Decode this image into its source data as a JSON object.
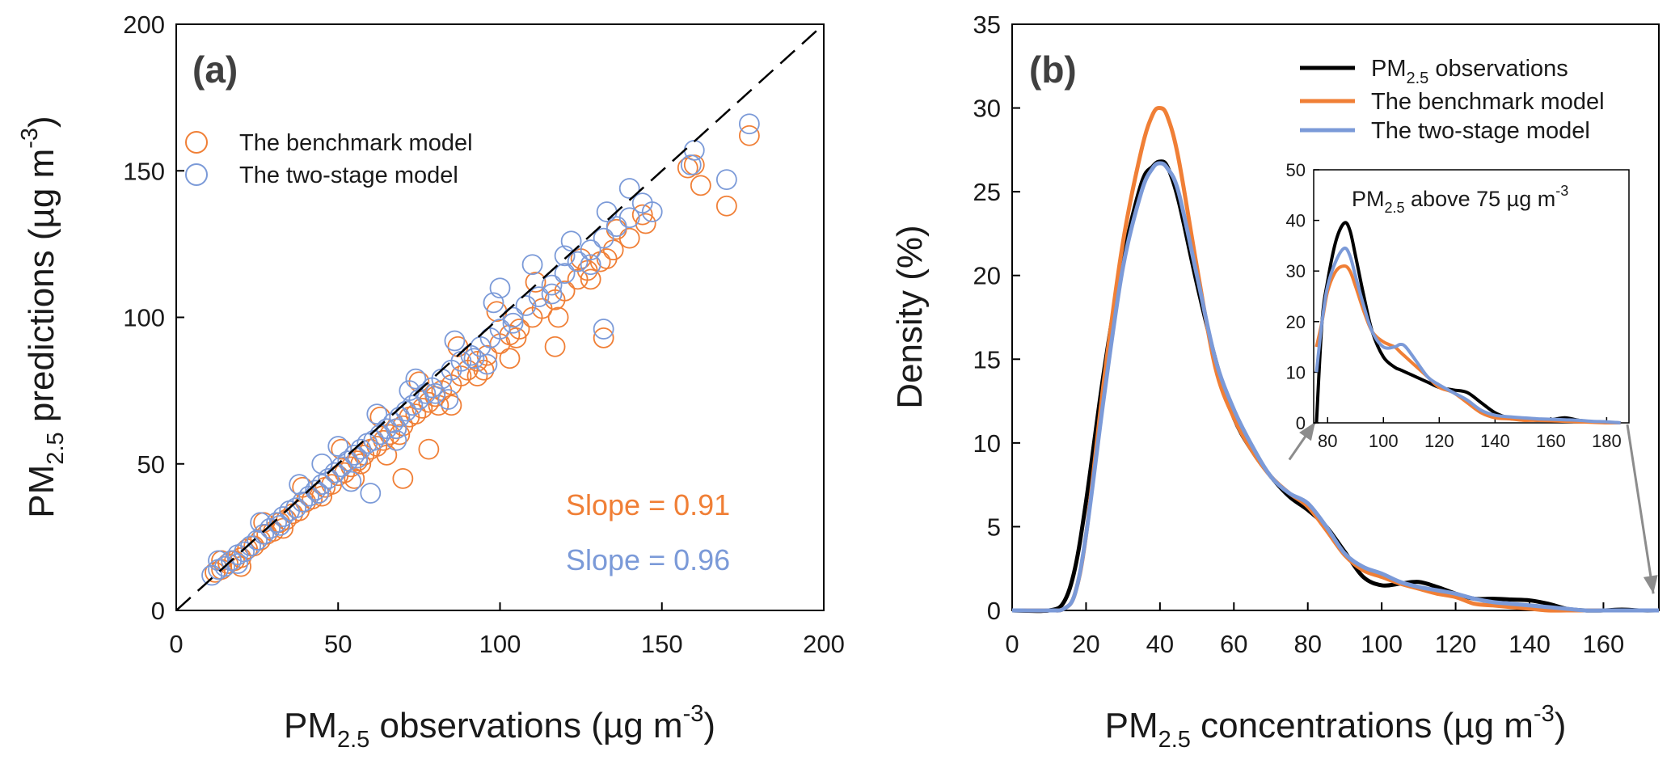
{
  "colors": {
    "benchmark": "#f07f36",
    "twostage": "#7b9ad8",
    "observations": "#000000",
    "arrow": "#8c8c8c"
  },
  "chart_data": [
    {
      "type": "scatter",
      "panel_label": "(a)",
      "xlabel": {
        "pre": "PM",
        "sub": "2.5",
        "mid": " observations (µg m",
        "sup": "-3",
        "post": ")"
      },
      "ylabel": {
        "pre": "PM",
        "sub": "2.5",
        "mid": " predictions (µg m",
        "sup": "-3",
        "post": ")"
      },
      "xlim": [
        0,
        200
      ],
      "ylim": [
        0,
        200
      ],
      "xticks": [
        "0",
        "50",
        "100",
        "150",
        "200"
      ],
      "yticks": [
        "0",
        "50",
        "100",
        "150",
        "200"
      ],
      "reference_line": "1:1 dashed",
      "legend": [
        {
          "label": "The benchmark model",
          "color": "#f07f36"
        },
        {
          "label": "The two-stage model",
          "color": "#7b9ad8"
        }
      ],
      "annotations": [
        {
          "text": "Slope = 0.91",
          "color": "#f07f36"
        },
        {
          "text": "Slope = 0.96",
          "color": "#7b9ad8"
        }
      ],
      "series": [
        {
          "name": "The benchmark model",
          "slope": 0.91,
          "points": [
            [
              12,
              13
            ],
            [
              14,
              14
            ],
            [
              16,
              16
            ],
            [
              18,
              17
            ],
            [
              20,
              18
            ],
            [
              22,
              21
            ],
            [
              24,
              22
            ],
            [
              26,
              24
            ],
            [
              28,
              26
            ],
            [
              30,
              27
            ],
            [
              32,
              30
            ],
            [
              34,
              31
            ],
            [
              36,
              33
            ],
            [
              38,
              34
            ],
            [
              40,
              37
            ],
            [
              42,
              38
            ],
            [
              44,
              40
            ],
            [
              46,
              42
            ],
            [
              48,
              43
            ],
            [
              50,
              46
            ],
            [
              52,
              47
            ],
            [
              54,
              49
            ],
            [
              56,
              51
            ],
            [
              58,
              53
            ],
            [
              60,
              55
            ],
            [
              62,
              56
            ],
            [
              64,
              58
            ],
            [
              66,
              60
            ],
            [
              68,
              62
            ],
            [
              70,
              63
            ],
            [
              72,
              66
            ],
            [
              74,
              67
            ],
            [
              76,
              69
            ],
            [
              78,
              71
            ],
            [
              80,
              73
            ],
            [
              82,
              75
            ],
            [
              85,
              77
            ],
            [
              88,
              80
            ],
            [
              90,
              82
            ],
            [
              93,
              85
            ],
            [
              96,
              87
            ],
            [
              100,
              91
            ],
            [
              103,
              94
            ],
            [
              106,
              96
            ],
            [
              110,
              100
            ],
            [
              113,
              103
            ],
            [
              117,
              106
            ],
            [
              120,
              109
            ],
            [
              124,
              113
            ],
            [
              127,
              116
            ],
            [
              131,
              119
            ],
            [
              135,
              123
            ],
            [
              140,
              127
            ],
            [
              145,
              132
            ],
            [
              14,
              17
            ],
            [
              20,
              15
            ],
            [
              27,
              30
            ],
            [
              33,
              28
            ],
            [
              39,
              42
            ],
            [
              45,
              39
            ],
            [
              51,
              55
            ],
            [
              57,
              50
            ],
            [
              63,
              66
            ],
            [
              69,
              60
            ],
            [
              75,
              78
            ],
            [
              81,
              70
            ],
            [
              87,
              90
            ],
            [
              93,
              80
            ],
            [
              99,
              102
            ],
            [
              105,
              93
            ],
            [
              111,
              112
            ],
            [
              118,
              100
            ],
            [
              125,
              120
            ],
            [
              133,
              120
            ],
            [
              70,
              45
            ],
            [
              78,
              55
            ],
            [
              95,
              82
            ],
            [
              117,
              90
            ],
            [
              132,
              93
            ],
            [
              160,
              152
            ],
            [
              162,
              145
            ],
            [
              170,
              138
            ],
            [
              177,
              162
            ],
            [
              158,
              151
            ],
            [
              144,
              135
            ],
            [
              136,
              130
            ],
            [
              55,
              45
            ],
            [
              65,
              53
            ],
            [
              85,
              70
            ],
            [
              103,
              86
            ],
            [
              128,
              113
            ]
          ]
        },
        {
          "name": "The two-stage model",
          "slope": 0.96,
          "points": [
            [
              11,
              12
            ],
            [
              13,
              14
            ],
            [
              15,
              15
            ],
            [
              17,
              17
            ],
            [
              19,
              19
            ],
            [
              21,
              20
            ],
            [
              23,
              22
            ],
            [
              25,
              24
            ],
            [
              27,
              26
            ],
            [
              29,
              28
            ],
            [
              31,
              30
            ],
            [
              33,
              32
            ],
            [
              35,
              34
            ],
            [
              37,
              35
            ],
            [
              39,
              37
            ],
            [
              41,
              39
            ],
            [
              43,
              41
            ],
            [
              45,
              43
            ],
            [
              47,
              45
            ],
            [
              49,
              47
            ],
            [
              51,
              49
            ],
            [
              53,
              51
            ],
            [
              55,
              53
            ],
            [
              57,
              55
            ],
            [
              59,
              57
            ],
            [
              61,
              58
            ],
            [
              63,
              60
            ],
            [
              65,
              62
            ],
            [
              67,
              64
            ],
            [
              69,
              66
            ],
            [
              71,
              68
            ],
            [
              73,
              70
            ],
            [
              75,
              72
            ],
            [
              77,
              74
            ],
            [
              79,
              76
            ],
            [
              82,
              79
            ],
            [
              85,
              82
            ],
            [
              88,
              85
            ],
            [
              91,
              87
            ],
            [
              94,
              90
            ],
            [
              97,
              93
            ],
            [
              100,
              96
            ],
            [
              104,
              100
            ],
            [
              108,
              104
            ],
            [
              112,
              107
            ],
            [
              116,
              111
            ],
            [
              120,
              115
            ],
            [
              124,
              119
            ],
            [
              128,
              123
            ],
            [
              132,
              127
            ],
            [
              136,
              131
            ],
            [
              140,
              134
            ],
            [
              144,
              139
            ],
            [
              13,
              17
            ],
            [
              19,
              16
            ],
            [
              26,
              30
            ],
            [
              32,
              29
            ],
            [
              38,
              43
            ],
            [
              44,
              40
            ],
            [
              50,
              56
            ],
            [
              56,
              52
            ],
            [
              62,
              67
            ],
            [
              68,
              62
            ],
            [
              74,
              79
            ],
            [
              80,
              74
            ],
            [
              86,
              92
            ],
            [
              92,
              86
            ],
            [
              98,
              105
            ],
            [
              104,
              98
            ],
            [
              110,
              118
            ],
            [
              116,
              108
            ],
            [
              122,
              126
            ],
            [
              128,
              118
            ],
            [
              140,
              144
            ],
            [
              133,
              136
            ],
            [
              54,
              44
            ],
            [
              68,
              58
            ],
            [
              84,
              72
            ],
            [
              96,
              84
            ],
            [
              132,
              96
            ],
            [
              159,
              152
            ],
            [
              160,
              157
            ],
            [
              170,
              147
            ],
            [
              177,
              166
            ],
            [
              147,
              136
            ],
            [
              120,
              121
            ],
            [
              100,
              110
            ],
            [
              60,
              40
            ],
            [
              72,
              75
            ],
            [
              45,
              50
            ]
          ]
        }
      ]
    },
    {
      "type": "line",
      "panel_label": "(b)",
      "xlabel": {
        "pre": "PM",
        "sub": "2.5",
        "mid": " concentrations (µg m",
        "sup": "-3",
        "post": ")"
      },
      "ylabel": {
        "pre": "Density (%)"
      },
      "xlim": [
        0,
        175
      ],
      "ylim": [
        0,
        35
      ],
      "xticks": [
        "0",
        "20",
        "40",
        "60",
        "80",
        "100",
        "120",
        "140",
        "160"
      ],
      "yticks": [
        "0",
        "5",
        "10",
        "15",
        "20",
        "25",
        "30",
        "35"
      ],
      "legend": [
        {
          "pre": "PM",
          "sub": "2.5",
          "post": " observations",
          "color": "#000000"
        },
        {
          "pre": "The benchmark model",
          "sub": "",
          "post": "",
          "color": "#f07f36"
        },
        {
          "pre": "The two-stage model",
          "sub": "",
          "post": "",
          "color": "#7b9ad8"
        }
      ],
      "x": [
        0,
        10,
        14,
        17,
        20,
        25,
        30,
        35,
        38,
        40,
        42,
        45,
        50,
        55,
        60,
        65,
        70,
        75,
        80,
        85,
        90,
        95,
        100,
        105,
        110,
        115,
        120,
        125,
        130,
        135,
        140,
        145,
        150,
        155,
        160,
        165,
        170,
        175
      ],
      "series": [
        {
          "name": "PM2.5 observations",
          "values": [
            0,
            0,
            0.5,
            2.5,
            6.5,
            14.5,
            21.0,
            25.5,
            26.5,
            26.8,
            26.5,
            24.5,
            19.5,
            15.0,
            11.5,
            9.5,
            8.0,
            6.8,
            6.0,
            5.0,
            3.5,
            2.0,
            1.5,
            1.6,
            1.7,
            1.4,
            1.0,
            0.7,
            0.7,
            0.65,
            0.6,
            0.4,
            0.1,
            0,
            0,
            0.05,
            0,
            0
          ]
        },
        {
          "name": "The benchmark model",
          "values": [
            0,
            0,
            0.1,
            1.0,
            4.5,
            14.0,
            22.0,
            27.5,
            29.6,
            30.0,
            29.5,
            27.0,
            20.5,
            14.5,
            11.5,
            9.5,
            8.0,
            7.0,
            6.2,
            4.8,
            3.3,
            2.4,
            2.0,
            1.6,
            1.3,
            1.0,
            0.8,
            0.4,
            0.3,
            0.2,
            0.1,
            0,
            0,
            0,
            0,
            0,
            0,
            0
          ]
        },
        {
          "name": "The two-stage model",
          "values": [
            0,
            0,
            0.1,
            1.0,
            4.5,
            13.0,
            20.5,
            25.0,
            26.4,
            26.7,
            26.4,
            25.0,
            20.0,
            15.0,
            12.0,
            9.8,
            8.0,
            7.0,
            6.4,
            5.0,
            3.4,
            2.6,
            2.2,
            1.7,
            1.4,
            1.2,
            1.0,
            0.7,
            0.5,
            0.4,
            0.3,
            0.2,
            0.1,
            0,
            0,
            0,
            0,
            0
          ]
        }
      ],
      "inset": {
        "title": {
          "pre": "PM",
          "sub": "2.5",
          "mid": " above 75 µg m",
          "sup": "-3"
        },
        "xlim": [
          75,
          188
        ],
        "ylim": [
          0,
          50
        ],
        "xticks": [
          "80",
          "100",
          "120",
          "140",
          "160",
          "180"
        ],
        "yticks": [
          "0",
          "10",
          "20",
          "30",
          "40",
          "50"
        ],
        "x": [
          76,
          78,
          80,
          83,
          86,
          88,
          90,
          93,
          96,
          100,
          104,
          106,
          108,
          112,
          116,
          120,
          125,
          130,
          135,
          140,
          145,
          150,
          155,
          160,
          165,
          170,
          175,
          180,
          185
        ],
        "series": [
          {
            "name": "PM2.5 observations",
            "values": [
              0,
              20,
              28,
              36,
              39.5,
              38,
              33,
              25,
              18,
              13,
              11,
              10.5,
              10,
              9,
              8,
              7,
              6.5,
              6,
              4,
              2,
              1,
              0.8,
              0.5,
              0.6,
              1.0,
              0.5,
              0.2,
              0.1,
              0
            ]
          },
          {
            "name": "The benchmark model",
            "values": [
              15,
              20,
              26,
              30,
              31,
              30,
              27,
              22,
              18,
              16,
              15,
              14,
              13,
              11,
              9,
              7,
              6,
              4,
              2,
              1,
              0.8,
              0.5,
              0.5,
              0.4,
              0.3,
              0.2,
              0.1,
              0,
              0
            ]
          },
          {
            "name": "The two-stage model",
            "values": [
              10,
              20,
              27,
              32,
              34.5,
              33,
              29,
              23,
              18,
              15,
              15,
              15.5,
              15,
              12,
              9,
              7.5,
              6,
              4.5,
              2.5,
              1.5,
              1.2,
              1.0,
              0.8,
              0.7,
              0.6,
              0.5,
              0.3,
              0.2,
              0
            ]
          }
        ]
      }
    }
  ]
}
